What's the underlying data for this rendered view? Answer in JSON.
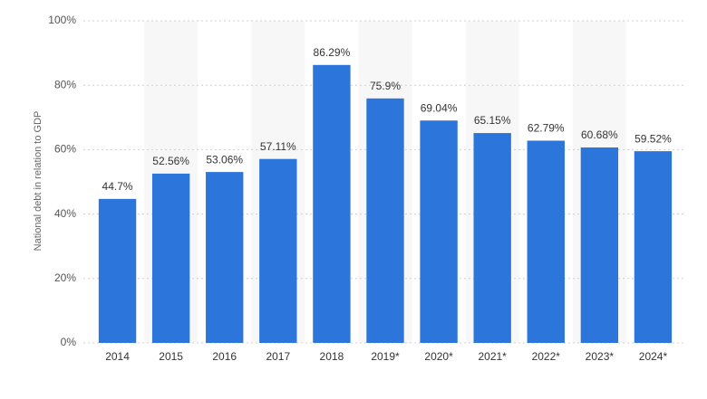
{
  "chart_data": {
    "type": "bar",
    "y_label": "National debt in relation to GDP",
    "categories": [
      "2014",
      "2015",
      "2016",
      "2017",
      "2018",
      "2019*",
      "2020*",
      "2021*",
      "2022*",
      "2023*",
      "2024*"
    ],
    "values": [
      44.7,
      52.56,
      53.06,
      57.11,
      86.29,
      75.9,
      69.04,
      65.15,
      62.79,
      60.68,
      59.52
    ],
    "value_labels": [
      "44.7%",
      "52.56%",
      "53.06%",
      "57.11%",
      "86.29%",
      "75.9%",
      "69.04%",
      "65.15%",
      "62.79%",
      "60.68%",
      "59.52%"
    ],
    "color": "#2b75db",
    "ylim": [
      0,
      100
    ],
    "yticks": [
      {
        "value": 0,
        "label": "0%"
      },
      {
        "value": 20,
        "label": "20%"
      },
      {
        "value": 40,
        "label": "40%"
      },
      {
        "value": 60,
        "label": "60%"
      },
      {
        "value": 80,
        "label": "80%"
      },
      {
        "value": 100,
        "label": "100%"
      }
    ],
    "grid": true
  }
}
